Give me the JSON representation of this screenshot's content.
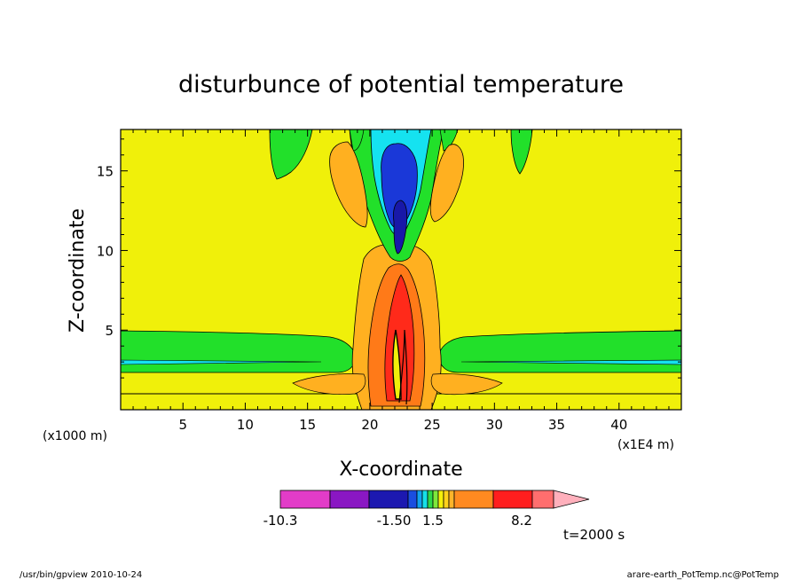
{
  "chart_data": {
    "type": "contour",
    "title": "disturbunce of potential temperature",
    "xlabel": "X-coordinate",
    "ylabel": "Z-coordinate",
    "x_units": "(x1E4 m)",
    "z_units": "(x1000 m)",
    "x_ticks": [
      "5",
      "10",
      "15",
      "20",
      "25",
      "30",
      "35",
      "40"
    ],
    "z_ticks": [
      "5",
      "10",
      "15"
    ],
    "xlim": [
      0,
      45
    ],
    "zlim": [
      0,
      17.6
    ],
    "time_label": "t=2000 s",
    "colorbar": {
      "labels": [
        "-10.3",
        "-1.50",
        "1.5",
        "8.2"
      ],
      "colors": [
        "#e23cc8",
        "#8a17c3",
        "#1c18b0",
        "#1a4ee0",
        "#12a3f0",
        "#16e0e8",
        "#2ed84a",
        "#7ee73b",
        "#f5f10a",
        "#ffd21c",
        "#ffb42a",
        "#ff8a20",
        "#ff1e1e",
        "#ff6e6e",
        "#ffb0bc"
      ]
    },
    "field_colors": {
      "background": "#f0f00a",
      "green": "#22e02a",
      "orange": "#ffb020",
      "dark_orange": "#ff7a18",
      "red": "#ff2a1a",
      "cyan": "#15e2f0",
      "blue": "#1a38d8",
      "navy": "#1818a8"
    }
  },
  "footer": {
    "left": "/usr/bin/gpview  2010-10-24",
    "right": "arare-earth_PotTemp.nc@PotTemp"
  }
}
